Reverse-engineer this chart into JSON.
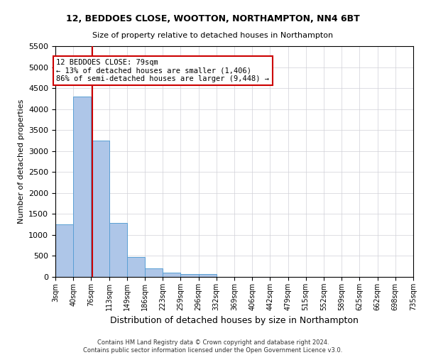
{
  "title1": "12, BEDDOES CLOSE, WOOTTON, NORTHAMPTON, NN4 6BT",
  "title2": "Size of property relative to detached houses in Northampton",
  "xlabel": "Distribution of detached houses by size in Northampton",
  "ylabel": "Number of detached properties",
  "footnote": "Contains HM Land Registry data © Crown copyright and database right 2024.\nContains public sector information licensed under the Open Government Licence v3.0.",
  "bin_edges": [
    3,
    40,
    76,
    113,
    149,
    186,
    223,
    259,
    296,
    332,
    369,
    406,
    442,
    479,
    515,
    552,
    589,
    625,
    662,
    698,
    735
  ],
  "bar_heights": [
    1250,
    4300,
    3250,
    1280,
    480,
    200,
    100,
    75,
    60,
    0,
    0,
    0,
    0,
    0,
    0,
    0,
    0,
    0,
    0,
    0
  ],
  "bar_color": "#aec6e8",
  "bar_edge_color": "#5a9fd4",
  "property_size": 79,
  "property_line_color": "#cc0000",
  "annotation_line1": "12 BEDDOES CLOSE: 79sqm",
  "annotation_line2": "← 13% of detached houses are smaller (1,406)",
  "annotation_line3": "86% of semi-detached houses are larger (9,448) →",
  "annotation_box_color": "#ffffff",
  "annotation_box_edge_color": "#cc0000",
  "ylim": [
    0,
    5500
  ],
  "yticks": [
    0,
    500,
    1000,
    1500,
    2000,
    2500,
    3000,
    3500,
    4000,
    4500,
    5000,
    5500
  ],
  "background_color": "#ffffff",
  "grid_color": "#d0d0d8"
}
